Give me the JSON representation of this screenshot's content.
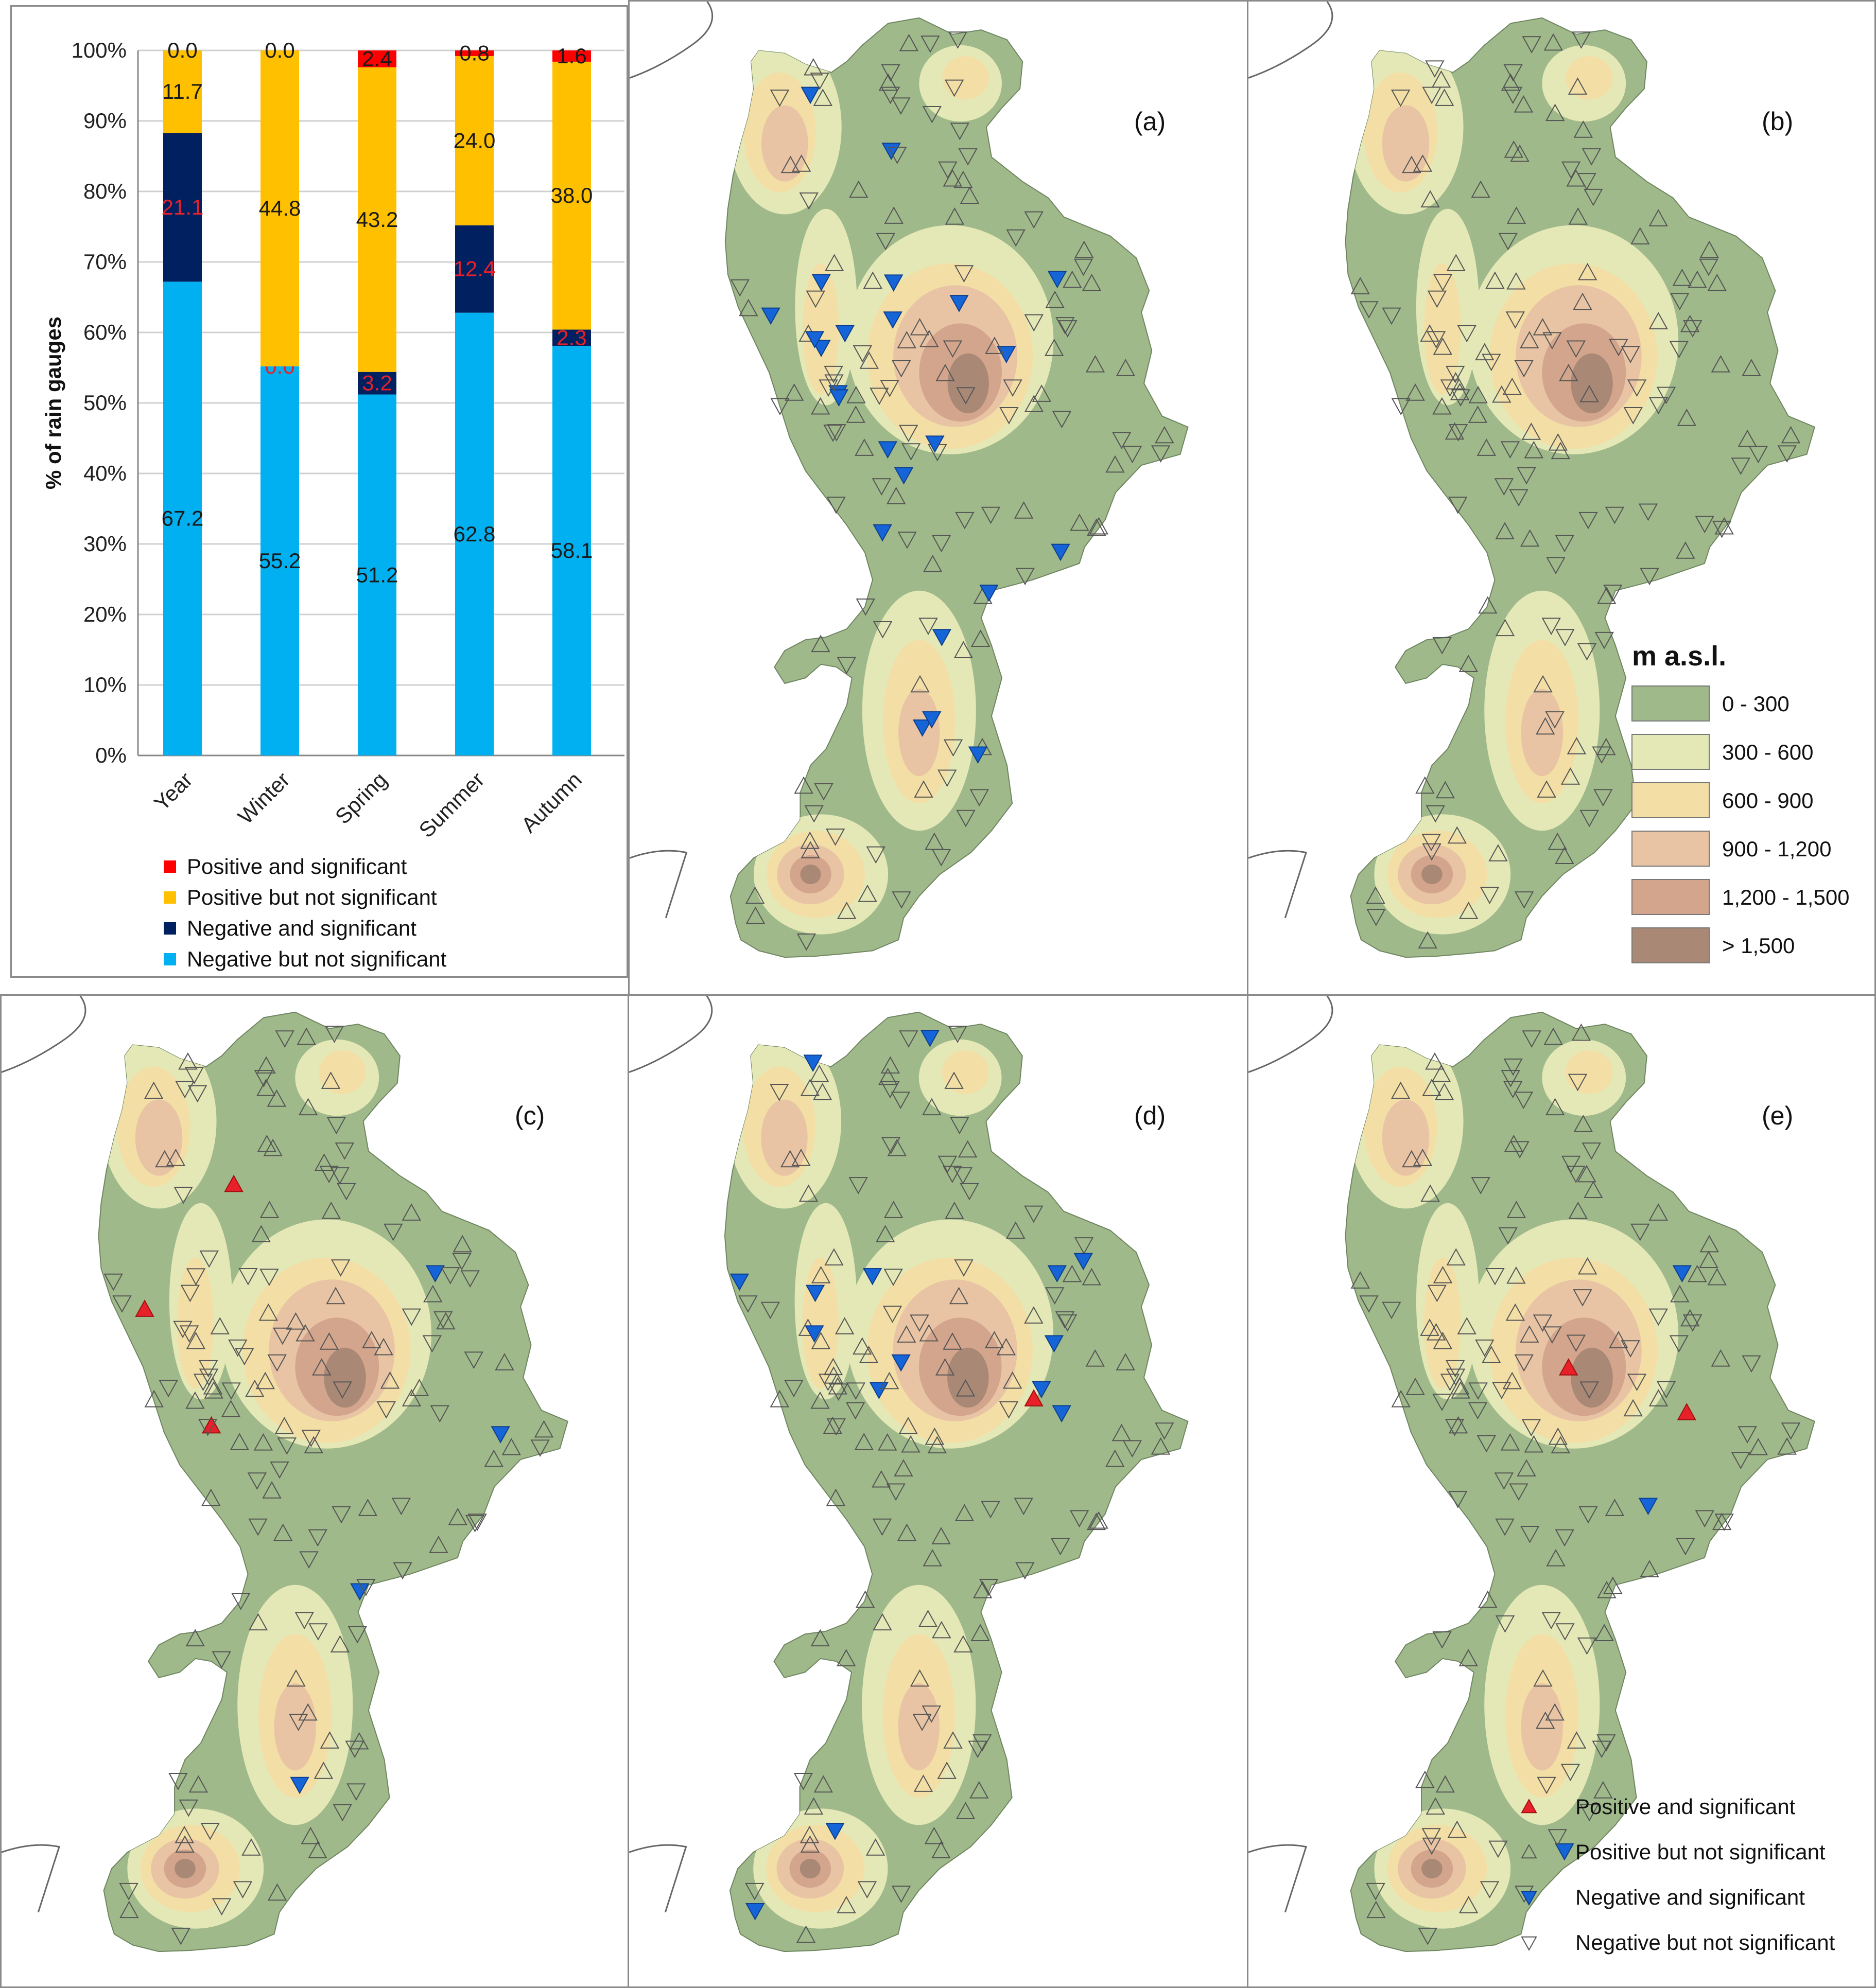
{
  "chart_data": [
    {
      "type": "bar",
      "stacked": true,
      "ylabel": "% of rain gauges",
      "ylim": [
        0,
        100
      ],
      "yticks": [
        "0%",
        "10%",
        "20%",
        "30%",
        "40%",
        "50%",
        "60%",
        "70%",
        "80%",
        "90%",
        "100%"
      ],
      "categories": [
        "Year",
        "Winter",
        "Spring",
        "Summer",
        "Autumn"
      ],
      "series": [
        {
          "name": "Negative but not significant",
          "color": "#00b0f0",
          "label_color": "#1a1a1a",
          "values": [
            67.2,
            55.2,
            51.2,
            62.8,
            58.1
          ],
          "labels": [
            "67.2",
            "55.2",
            "51.2",
            "62.8",
            "58.1"
          ]
        },
        {
          "name": "Negative and significant",
          "color": "#002060",
          "label_color": "#e8202a",
          "values": [
            21.1,
            0.0,
            3.2,
            12.4,
            2.3
          ],
          "labels": [
            "21.1",
            "0.0",
            "3.2",
            "12.4",
            "2.3"
          ]
        },
        {
          "name": "Positive but not significant",
          "color": "#ffc000",
          "label_color": "#1a1a1a",
          "values": [
            11.7,
            44.8,
            43.2,
            24.0,
            38.0
          ],
          "labels": [
            "11.7",
            "44.8",
            "43.2",
            "24.0",
            "38.0"
          ]
        },
        {
          "name": "Positive and significant",
          "color": "#ff0000",
          "label_color": "#1a1a1a",
          "values": [
            0.0,
            0.0,
            2.4,
            0.8,
            1.6
          ],
          "labels": [
            "0.0",
            "0.0",
            "2.4",
            "0.8",
            "1.6"
          ]
        }
      ],
      "legend": [
        "Positive and significant",
        "Positive but not significant",
        "Negative and significant",
        "Negative but not significant"
      ],
      "legend_placement": "bottom"
    },
    {
      "type": "map",
      "panel": "(a)",
      "sig_negative": 24,
      "sig_positive": 0
    },
    {
      "type": "map",
      "panel": "(b)",
      "sig_negative": 0,
      "sig_positive": 0
    },
    {
      "type": "map",
      "panel": "(c)",
      "sig_negative": 4,
      "sig_positive": 3
    },
    {
      "type": "map",
      "panel": "(d)",
      "sig_negative": 15,
      "sig_positive": 1
    },
    {
      "type": "map",
      "panel": "(e)",
      "sig_negative": 3,
      "sig_positive": 2
    }
  ],
  "elevation_legend": {
    "title": "m a.s.l.",
    "classes": [
      {
        "label": "0 - 300",
        "color": "#9fb98a"
      },
      {
        "label": "300 - 600",
        "color": "#e4e8b6"
      },
      {
        "label": "600 - 900",
        "color": "#f3dfa6"
      },
      {
        "label": "900 - 1,200",
        "color": "#e8c4a4"
      },
      {
        "label": "1,200 - 1,500",
        "color": "#d3a58c"
      },
      {
        "label": "> 1,500",
        "color": "#a98876"
      }
    ]
  },
  "map_legend": [
    {
      "label": "Positive and significant",
      "symbol": "up",
      "fill": "#e8202a"
    },
    {
      "label": "Positive but not significant",
      "symbol": "up",
      "fill": "none"
    },
    {
      "label": "Negative and significant",
      "symbol": "down",
      "fill": "#1565d8"
    },
    {
      "label": "Negative but not significant",
      "symbol": "down",
      "fill": "none"
    }
  ],
  "colors": {
    "land": "#9fb98a",
    "coast": "#555555",
    "panel_border": "#8a8a8a"
  }
}
